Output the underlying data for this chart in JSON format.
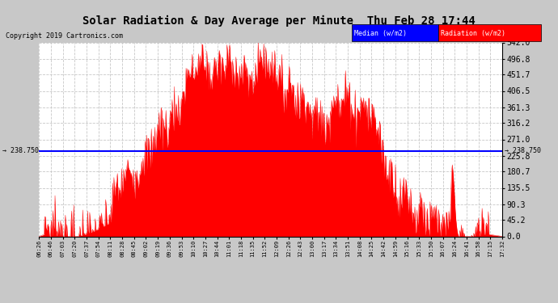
{
  "title": "Solar Radiation & Day Average per Minute  Thu Feb 28 17:44",
  "copyright": "Copyright 2019 Cartronics.com",
  "median_value": 238.75,
  "ymax": 542.0,
  "yticks": [
    0.0,
    45.2,
    90.3,
    135.5,
    180.7,
    225.8,
    271.0,
    316.2,
    361.3,
    406.5,
    451.7,
    496.8,
    542.0
  ],
  "ytick_labels": [
    "0.0",
    "45.2",
    "90.3",
    "135.5",
    "180.7",
    "225.8",
    "271.0",
    "316.2",
    "361.3",
    "406.5",
    "451.7",
    "496.8",
    "542.0"
  ],
  "xtick_labels": [
    "06:26",
    "06:46",
    "07:03",
    "07:20",
    "07:37",
    "07:54",
    "08:11",
    "08:28",
    "08:45",
    "09:02",
    "09:19",
    "09:36",
    "09:53",
    "10:10",
    "10:27",
    "10:44",
    "11:01",
    "11:18",
    "11:35",
    "11:52",
    "12:09",
    "12:26",
    "12:43",
    "13:00",
    "13:17",
    "13:34",
    "13:51",
    "14:08",
    "14:25",
    "14:42",
    "14:59",
    "15:16",
    "15:33",
    "15:50",
    "16:07",
    "16:24",
    "16:41",
    "16:58",
    "17:15",
    "17:32"
  ],
  "background_color": "#c8c8c8",
  "plot_bg_color": "#ffffff",
  "fill_color": "#ff0000",
  "line_color": "#ff0000",
  "median_line_color": "#0000ff",
  "grid_color": "#c8c8c8",
  "title_color": "#000000",
  "legend_median_bg": "#0000ff",
  "legend_radiation_bg": "#ff0000",
  "median_label": "Median (w/m2)",
  "radiation_label": "Radiation (w/m2)",
  "left_median_label": "238.750",
  "right_median_label": "238.750"
}
